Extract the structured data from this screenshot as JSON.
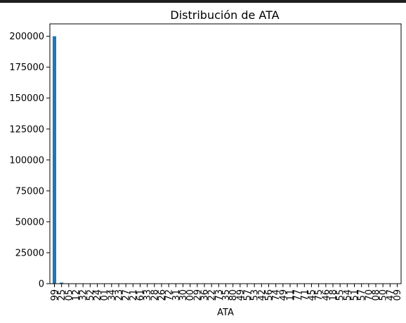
{
  "chart_data": {
    "type": "bar",
    "title": "Distribución de ATA",
    "xlabel": "ATA",
    "ylabel": "",
    "ylim": [
      0,
      210000
    ],
    "yticks": [
      0,
      25000,
      50000,
      75000,
      100000,
      125000,
      150000,
      175000,
      200000
    ],
    "ytick_labels": [
      "0",
      "25000",
      "50000",
      "75000",
      "100000",
      "125000",
      "150000",
      "175000",
      "200000"
    ],
    "grid": false,
    "bar_color": "#1f77b4",
    "categories": [
      "99",
      "25",
      "05",
      "12",
      "32",
      "52",
      "24",
      "01",
      "34",
      "23",
      "27",
      "21",
      "61",
      "33",
      "28",
      "26",
      "72",
      "31",
      "30",
      "00",
      "29",
      "36",
      "22",
      "73",
      "35",
      "80",
      "49",
      "57",
      "53",
      "42",
      "56",
      "74",
      "49",
      "11",
      "77",
      "71",
      "45",
      "75",
      "46",
      "18",
      "55",
      "54",
      "51",
      "57",
      "70",
      "08",
      "50",
      "47",
      "09"
    ],
    "values": [
      200000,
      900,
      250,
      150,
      120,
      100,
      90,
      80,
      70,
      60,
      55,
      50,
      45,
      40,
      38,
      35,
      32,
      30,
      28,
      26,
      24,
      22,
      20,
      18,
      16,
      15,
      14,
      13,
      12,
      11,
      10,
      9,
      8,
      7,
      6,
      6,
      5,
      5,
      4,
      4,
      3,
      3,
      3,
      2,
      2,
      2,
      1,
      1,
      1
    ]
  }
}
